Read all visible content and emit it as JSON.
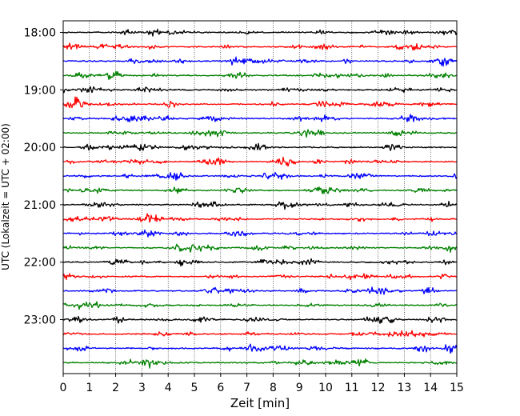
{
  "chart_data": {
    "type": "line",
    "xlabel": "Zeit  [min]",
    "ylabel": "UTC (Lokalzeit = UTC + 02:00)",
    "xlim": [
      0,
      15
    ],
    "x_ticks": [
      0,
      1,
      2,
      3,
      4,
      5,
      6,
      7,
      8,
      9,
      10,
      11,
      12,
      13,
      14,
      15
    ],
    "y_tick_labels": [
      "18:00",
      "19:00",
      "20:00",
      "21:00",
      "22:00",
      "23:00"
    ],
    "y_tick_rows": [
      0,
      4,
      8,
      12,
      16,
      20
    ],
    "row_count": 24,
    "grid": {
      "x": "dotted",
      "y": false
    },
    "series_colors": [
      "#000000",
      "#ff0000",
      "#0000ff",
      "#008000"
    ],
    "rows": [
      {
        "start": "18:00",
        "color": "#000000"
      },
      {
        "start": "18:15",
        "color": "#ff0000"
      },
      {
        "start": "18:30",
        "color": "#0000ff"
      },
      {
        "start": "18:45",
        "color": "#008000"
      },
      {
        "start": "19:00",
        "color": "#000000"
      },
      {
        "start": "19:15",
        "color": "#ff0000"
      },
      {
        "start": "19:30",
        "color": "#0000ff"
      },
      {
        "start": "19:45",
        "color": "#008000"
      },
      {
        "start": "20:00",
        "color": "#000000"
      },
      {
        "start": "20:15",
        "color": "#ff0000"
      },
      {
        "start": "20:30",
        "color": "#0000ff"
      },
      {
        "start": "20:45",
        "color": "#008000"
      },
      {
        "start": "21:00",
        "color": "#000000"
      },
      {
        "start": "21:15",
        "color": "#ff0000"
      },
      {
        "start": "21:30",
        "color": "#0000ff"
      },
      {
        "start": "21:45",
        "color": "#008000"
      },
      {
        "start": "22:00",
        "color": "#000000"
      },
      {
        "start": "22:15",
        "color": "#ff0000"
      },
      {
        "start": "22:30",
        "color": "#0000ff"
      },
      {
        "start": "22:45",
        "color": "#008000"
      },
      {
        "start": "23:00",
        "color": "#000000"
      },
      {
        "start": "23:15",
        "color": "#ff0000"
      },
      {
        "start": "23:30",
        "color": "#0000ff"
      },
      {
        "start": "23:45",
        "color": "#008000"
      }
    ]
  }
}
